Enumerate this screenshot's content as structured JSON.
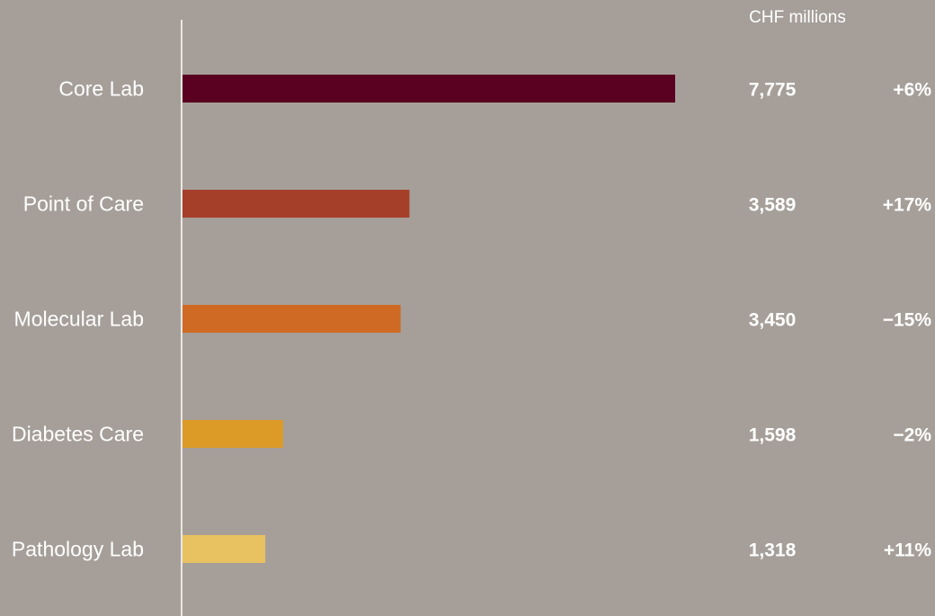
{
  "chart_data": {
    "type": "bar",
    "orientation": "horizontal",
    "unit_label": "CHF millions",
    "categories": [
      "Core Lab",
      "Point of Care",
      "Molecular Lab",
      "Diabetes Care",
      "Pathology Lab"
    ],
    "values": [
      7775,
      3589,
      3450,
      1598,
      1318
    ],
    "value_labels": [
      "7,775",
      "3,589",
      "3,450",
      "1,598",
      "1,318"
    ],
    "changes": [
      "+6%",
      "+17%",
      "−15%",
      "−2%",
      "+11%"
    ],
    "colors": [
      "#5a0020",
      "#a63f2a",
      "#cf6a25",
      "#dc9a26",
      "#e8c260"
    ],
    "xlim": [
      0,
      7775
    ],
    "grid": false,
    "legend": "none"
  }
}
